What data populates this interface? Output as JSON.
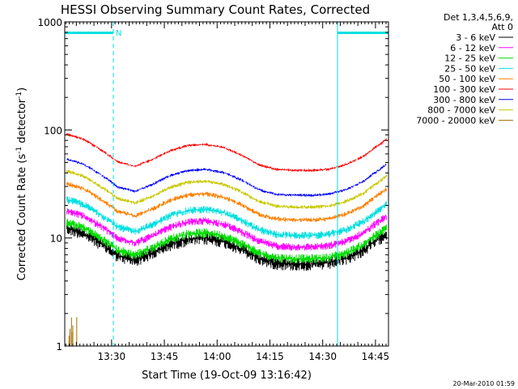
{
  "chart_data": {
    "type": "line",
    "title": "HESSI Observing Summary Count Rates, Corrected",
    "xlabel": "Start Time (19-Oct-09 13:16:42)",
    "ylabel_main": "Corrected Count Rate (s",
    "ylabel_sup1": "-1",
    "ylabel_mid": " detector",
    "ylabel_sup2": "-1",
    "ylabel_end": ")",
    "y_scale": "log",
    "ylim": [
      1,
      1000
    ],
    "xlim_min": [
      0,
      92
    ],
    "x_ticks": [
      {
        "label": "13:30",
        "min": 13.3
      },
      {
        "label": "13:45",
        "min": 28.3
      },
      {
        "label": "14:00",
        "min": 43.3
      },
      {
        "label": "14:15",
        "min": 58.3
      },
      {
        "label": "14:30",
        "min": 73.3
      },
      {
        "label": "14:45",
        "min": 88.3
      }
    ],
    "y_ticks": [
      {
        "label": "1",
        "value": 1
      },
      {
        "label": "10",
        "value": 10
      },
      {
        "label": "100",
        "value": 100
      },
      {
        "label": "1000",
        "value": 1000
      }
    ],
    "legend_header_1": "Det 1,3,4,5,6,9,",
    "legend_header_2": "Att 0",
    "legend_position": "top-right, outside plot",
    "series": [
      {
        "name": "3 - 6 keV",
        "color": "#000000",
        "base": 12.5,
        "noise": 0.14
      },
      {
        "name": "6 - 12 keV",
        "color": "#ff00ff",
        "base": 18,
        "noise": 0.08
      },
      {
        "name": "12 - 25 keV",
        "color": "#00dd00",
        "base": 14,
        "noise": 0.1
      },
      {
        "name": "25 - 50 keV",
        "color": "#00e0e0",
        "base": 23,
        "noise": 0.08
      },
      {
        "name": "50 - 100 keV",
        "color": "#ff8000",
        "base": 32,
        "noise": 0.05
      },
      {
        "name": "100 - 300 keV",
        "color": "#ff0000",
        "base": 92,
        "noise": 0.03
      },
      {
        "name": "300 - 800 keV",
        "color": "#0000ff",
        "base": 54,
        "noise": 0.03
      },
      {
        "name": "800 - 7000 keV",
        "color": "#c8c800",
        "base": 42,
        "noise": 0.04
      },
      {
        "name": "7000 - 20000 keV",
        "color": "#a07000",
        "base": 1.3,
        "noise": 0.3
      }
    ],
    "shape_factors": {
      "min": [
        0,
        5,
        10,
        15,
        20,
        25,
        30,
        35,
        40,
        45,
        50,
        55,
        60,
        65,
        70,
        75,
        80,
        85,
        90,
        92
      ],
      "factor": [
        1.0,
        0.9,
        0.72,
        0.55,
        0.5,
        0.58,
        0.7,
        0.78,
        0.8,
        0.75,
        0.64,
        0.52,
        0.47,
        0.46,
        0.46,
        0.47,
        0.52,
        0.62,
        0.82,
        0.92
      ]
    },
    "annotations": {
      "flag_label": "N",
      "flag_color": "#00e0e0",
      "flag_intervals_min": [
        [
          0,
          13.8
        ],
        [
          77.5,
          92
        ]
      ],
      "vertical_solid_min": [
        0,
        77.5
      ],
      "vertical_dashed_min": [
        13.8,
        92
      ]
    },
    "timestamp": "20-Mar-2010 01:59"
  }
}
